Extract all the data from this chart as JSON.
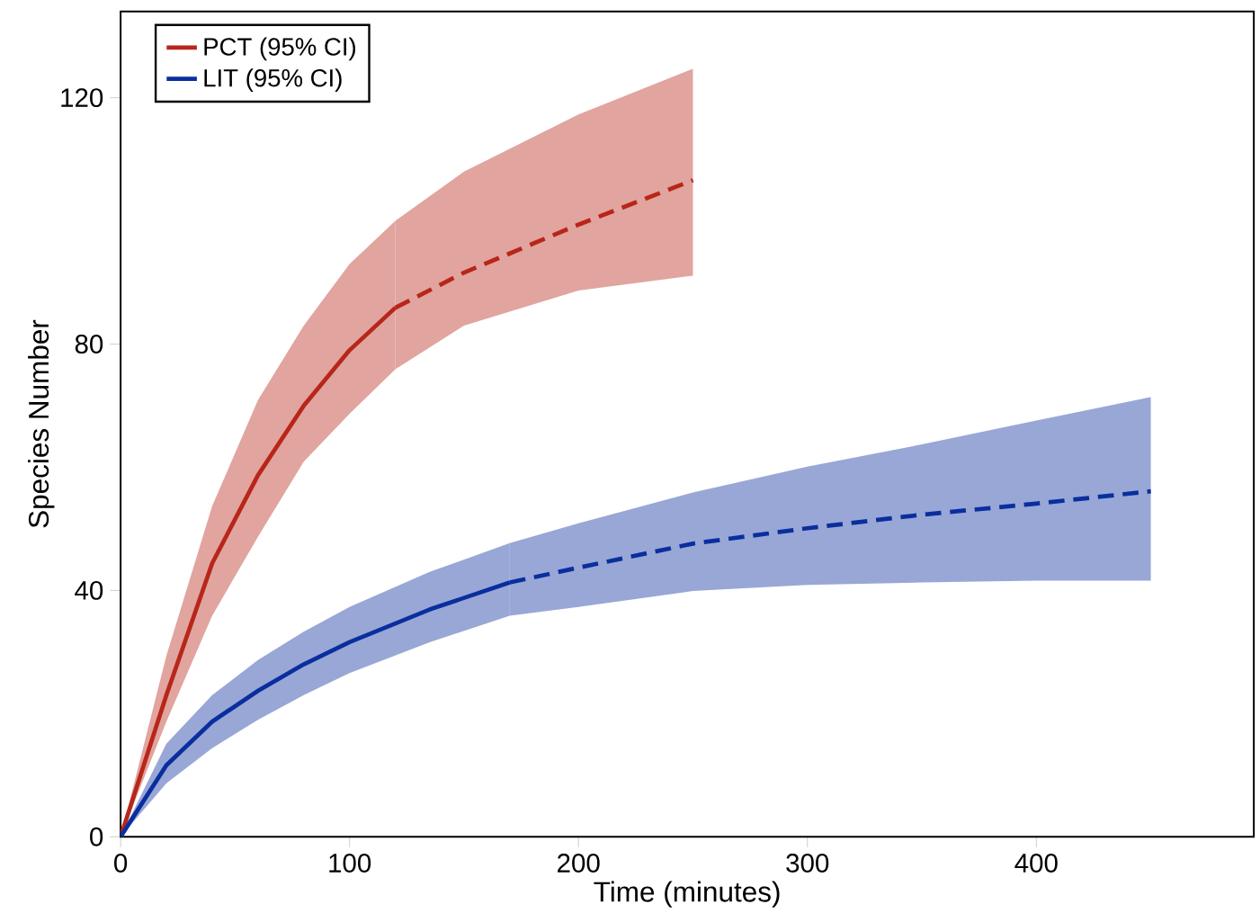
{
  "chart_data": {
    "type": "line",
    "xlabel": "Time (minutes)",
    "ylabel": "Species Number",
    "xlim": [
      0,
      495
    ],
    "ylim": [
      0,
      134
    ],
    "xticks": [
      0,
      100,
      200,
      300,
      400
    ],
    "yticks": [
      0,
      40,
      80,
      120
    ],
    "legend": "top left",
    "grid": false,
    "series": [
      {
        "name": "PCT (95% CI)",
        "color": "#b8261a",
        "line_style": "solid",
        "x": [
          0,
          20,
          40,
          60,
          80,
          100,
          120
        ],
        "values": [
          0,
          23,
          44.4,
          58.7,
          70,
          79,
          85.9
        ],
        "lower": [
          0,
          18.7,
          35.9,
          48.7,
          60.9,
          68.7,
          75.9
        ],
        "upper": [
          0,
          29.4,
          53.7,
          70.9,
          83,
          93,
          100
        ]
      },
      {
        "color": "#b8261a",
        "line_style": "dashed",
        "x": [
          120,
          150,
          200,
          250
        ],
        "values": [
          85.9,
          91.6,
          99.4,
          106.6
        ],
        "lower": [
          75.9,
          83,
          88.7,
          91.1
        ],
        "upper": [
          100,
          108,
          117.3,
          124.7
        ]
      },
      {
        "name": "LIT (95% CI)",
        "color": "#0a2e9e",
        "line_style": "solid",
        "x": [
          0,
          20,
          40,
          60,
          80,
          100,
          135,
          170
        ],
        "values": [
          0,
          11.6,
          18.7,
          23.7,
          28,
          31.6,
          36.9,
          41.3
        ],
        "lower": [
          0,
          8.7,
          14.4,
          19,
          23,
          26.6,
          31.6,
          35.9
        ],
        "upper": [
          0,
          15.1,
          23,
          28.7,
          33.3,
          37.3,
          43,
          47.7
        ]
      },
      {
        "color": "#0a2e9e",
        "line_style": "dashed",
        "x": [
          170,
          200,
          250,
          300,
          350,
          400,
          450
        ],
        "values": [
          41.3,
          43.7,
          47.6,
          50.1,
          52.3,
          54.1,
          56.1
        ],
        "lower": [
          35.9,
          37.3,
          39.9,
          40.9,
          41.3,
          41.6,
          41.6
        ],
        "upper": [
          47.7,
          50.9,
          55.9,
          60.1,
          63.7,
          67.6,
          71.4
        ]
      }
    ]
  }
}
